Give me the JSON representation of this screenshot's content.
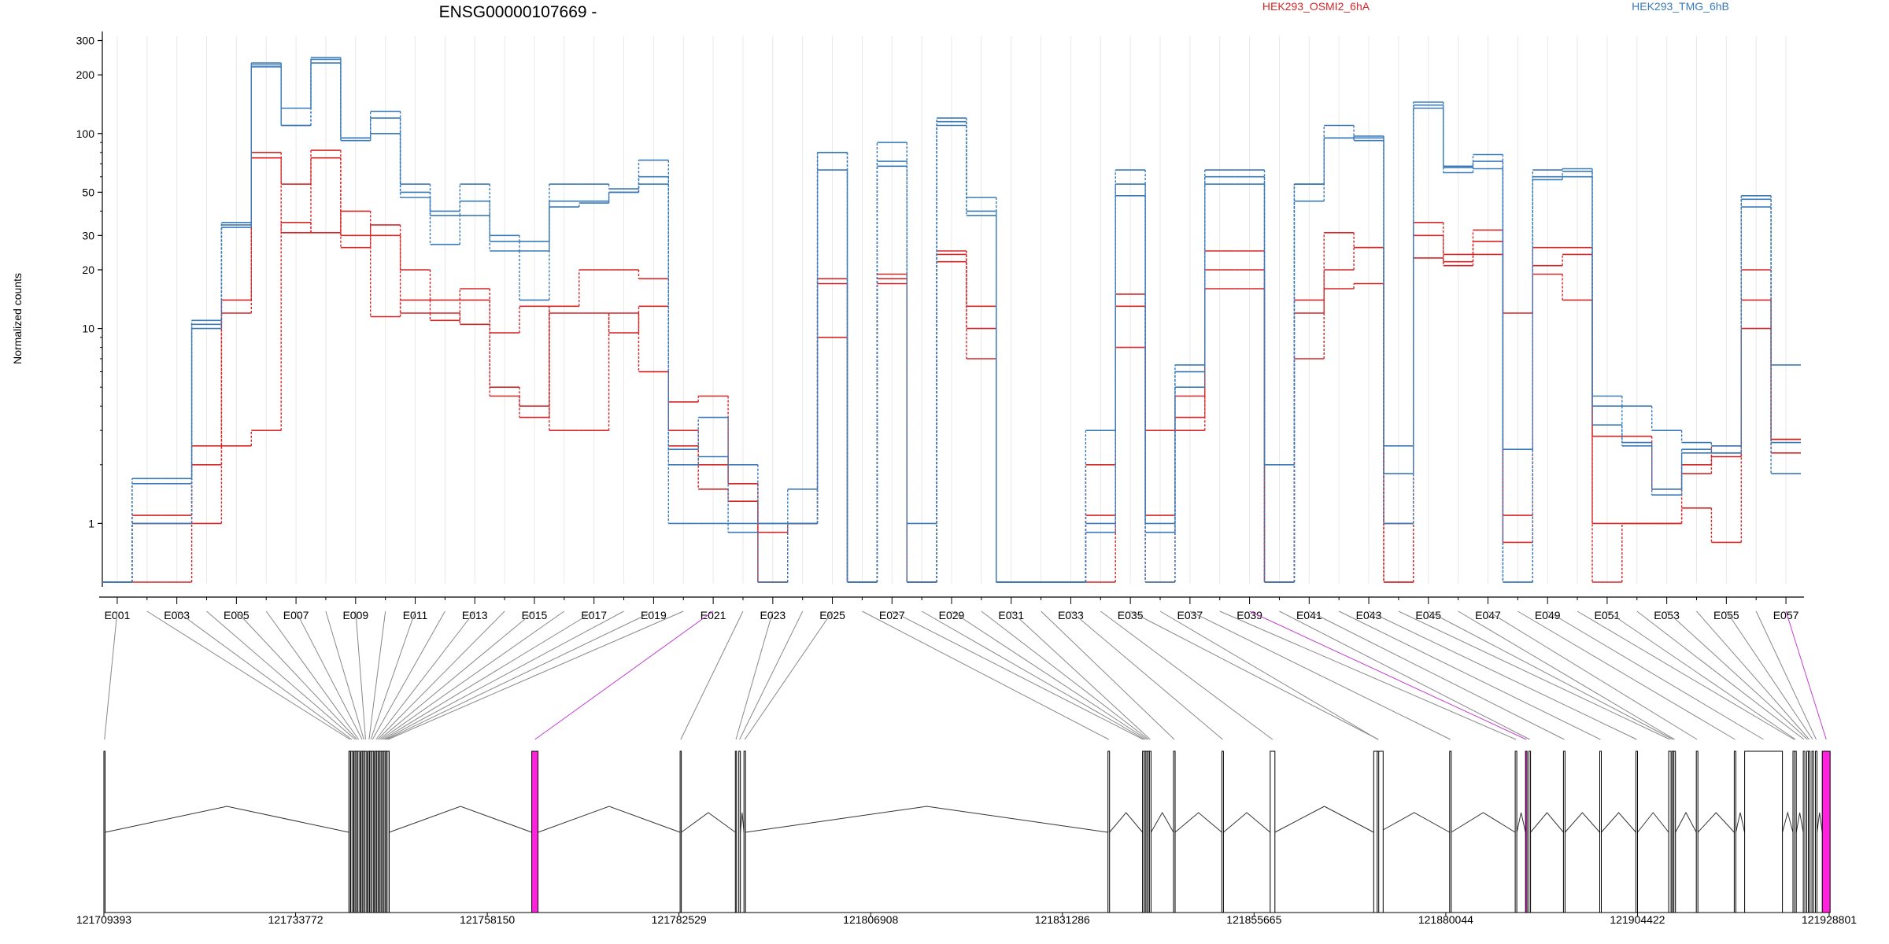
{
  "chart_data": {
    "type": "line",
    "title": "ENSG00000107669 -",
    "ylabel": "Normalized counts",
    "y_scale": "log",
    "y_ticks": [
      "300",
      "200",
      "100",
      "50",
      "30",
      "20",
      "10",
      "1"
    ],
    "categories": [
      "E001",
      "E002",
      "E003",
      "E004",
      "E005",
      "E006",
      "E007",
      "E008",
      "E009",
      "E010",
      "E011",
      "E012",
      "E013",
      "E014",
      "E015",
      "E016",
      "E017",
      "E018",
      "E019",
      "E020",
      "E021",
      "E022",
      "E023",
      "E024",
      "E025",
      "E026",
      "E027",
      "E028",
      "E029",
      "E030",
      "E031",
      "E032",
      "E033",
      "E034",
      "E035",
      "E036",
      "E037",
      "E038",
      "E039",
      "E040",
      "E041",
      "E042",
      "E043",
      "E044",
      "E045",
      "E046",
      "E047",
      "E048",
      "E049",
      "E050",
      "E051",
      "E052",
      "E053",
      "E054",
      "E055",
      "E056",
      "E057"
    ],
    "category_labels_shown": [
      "E001",
      "E003",
      "E005",
      "E007",
      "E009",
      "E011",
      "E013",
      "E015",
      "E017",
      "E019",
      "E021",
      "E023",
      "E025",
      "E027",
      "E029",
      "E031",
      "E033",
      "E035",
      "E037",
      "E039",
      "E041",
      "E043",
      "E045",
      "E047",
      "E049",
      "E051",
      "E053",
      "E055",
      "E057"
    ],
    "legend": [
      "HEK293_OSMI2_6hA",
      "HEK293_TMG_6hB"
    ],
    "series_colors": [
      "#d62728",
      "#3a7ab8"
    ],
    "series": [
      {
        "group": 1,
        "values": [
          0.5,
          1,
          1,
          1,
          2.5,
          3,
          35,
          31,
          40,
          11.5,
          14,
          12,
          10.5,
          9.5,
          13,
          3,
          3,
          12,
          6,
          3,
          2,
          1.6,
          0.9,
          1,
          17,
          0.5,
          18,
          0.5,
          22,
          10,
          0.5,
          0.5,
          0.5,
          1.1,
          8,
          1.1,
          3.5,
          16,
          16,
          0.5,
          7,
          16,
          17,
          0.5,
          23,
          21,
          24,
          12,
          19,
          14,
          0.5,
          1,
          1,
          1.2,
          0.8,
          10,
          2.3
        ]
      },
      {
        "group": 1,
        "values": [
          0.5,
          1.1,
          1.1,
          2.5,
          12,
          80,
          55,
          82,
          30,
          34,
          20,
          14,
          16,
          5,
          4,
          13,
          20,
          20,
          18,
          4.2,
          4.5,
          1.6,
          0.5,
          1,
          18,
          0.5,
          19,
          0.5,
          25,
          13,
          0.5,
          0.5,
          0.5,
          2,
          13,
          3,
          4.5,
          25,
          25,
          0.5,
          14,
          31,
          26,
          0.5,
          35,
          24,
          32,
          0.8,
          26,
          26,
          2.8,
          2.8,
          1.5,
          2,
          2.5,
          14,
          2.7
        ]
      },
      {
        "group": 1,
        "values": [
          0.5,
          0.5,
          0.5,
          2,
          14,
          75,
          31,
          75,
          26,
          30,
          12,
          11,
          14,
          4.5,
          3.5,
          12,
          12,
          9.5,
          13,
          2.5,
          1.5,
          1.3,
          0.5,
          1,
          9,
          0.5,
          17,
          0.5,
          24,
          7,
          0.5,
          0.5,
          0.5,
          0.5,
          15,
          0.5,
          3,
          20,
          20,
          0.5,
          12,
          20,
          26,
          1,
          30,
          22,
          28,
          1.1,
          21,
          24,
          1,
          1,
          1,
          1.8,
          2.2,
          20,
          2.7
        ]
      },
      {
        "group": 2,
        "values": [
          0.5,
          1.7,
          1.7,
          11,
          35,
          230,
          135,
          245,
          95,
          130,
          55,
          40,
          55,
          30,
          28,
          55,
          55,
          52,
          73,
          2.4,
          3.5,
          2,
          1,
          1.5,
          80,
          0.5,
          90,
          0.5,
          120,
          47,
          0.5,
          0.5,
          0.5,
          3,
          65,
          1,
          6.5,
          65,
          65,
          2,
          55,
          110,
          95,
          2.5,
          145,
          68,
          78,
          2.4,
          65,
          66,
          4.5,
          4,
          3,
          2.6,
          2.5,
          48,
          6.5
        ]
      },
      {
        "group": 2,
        "values": [
          0.5,
          1.6,
          1.6,
          10.5,
          34,
          225,
          110,
          240,
          92,
          120,
          50,
          38,
          45,
          28,
          25,
          45,
          45,
          50,
          60,
          2,
          2.2,
          1,
          1,
          1,
          65,
          0.5,
          72,
          0.5,
          115,
          40,
          0.5,
          0.5,
          0.5,
          1,
          55,
          0.5,
          6,
          60,
          60,
          0.5,
          55,
          95,
          97,
          1.8,
          135,
          63,
          72,
          0.5,
          60,
          60,
          3.2,
          2.5,
          1.5,
          2.3,
          2.3,
          46,
          1.8
        ]
      },
      {
        "group": 2,
        "values": [
          0.5,
          1,
          1,
          10,
          33,
          220,
          110,
          230,
          95,
          100,
          47,
          27,
          38,
          25,
          14,
          42,
          44,
          50,
          55,
          1,
          1,
          0.9,
          0.5,
          1,
          80,
          0.5,
          68,
          1,
          110,
          38,
          0.5,
          0.5,
          0.5,
          0.9,
          48,
          0.9,
          5,
          55,
          55,
          0.5,
          45,
          95,
          92,
          1,
          140,
          67,
          66,
          0.5,
          58,
          64,
          4,
          2.6,
          1.4,
          2.4,
          2.3,
          42,
          2.6
        ]
      }
    ],
    "genome_ticks": [
      "121709393",
      "121733772",
      "121758150",
      "121782529",
      "121806908",
      "121831286",
      "121855665",
      "121880044",
      "121904422",
      "121928801"
    ]
  },
  "colors": {
    "highlight": "#ff22dd",
    "exon_fill": "#bbbbbb",
    "axis": "#000000"
  }
}
